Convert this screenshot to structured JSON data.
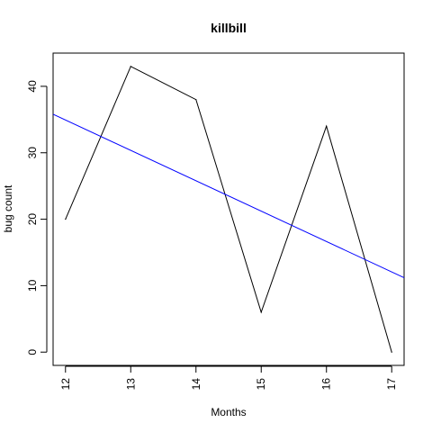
{
  "chart_data": {
    "type": "line",
    "title": "killbill",
    "xlabel": "Months",
    "ylabel": "bug count",
    "x": [
      12,
      13,
      14,
      15,
      16,
      17
    ],
    "xlim": [
      11.81,
      17.19
    ],
    "ylim": [
      -2,
      45
    ],
    "x_ticks": [
      "12",
      "13",
      "14",
      "15",
      "16",
      "17"
    ],
    "y_ticks": [
      "0",
      "10",
      "20",
      "30",
      "40"
    ],
    "series": [
      {
        "values": [
          20,
          43,
          38,
          6,
          34,
          0
        ],
        "color": "#000000"
      }
    ],
    "trend_line": {
      "color": "#0000ff",
      "points": [
        [
          11.81,
          35.8
        ],
        [
          17.19,
          11.2
        ]
      ]
    },
    "grid": false,
    "legend": false
  }
}
